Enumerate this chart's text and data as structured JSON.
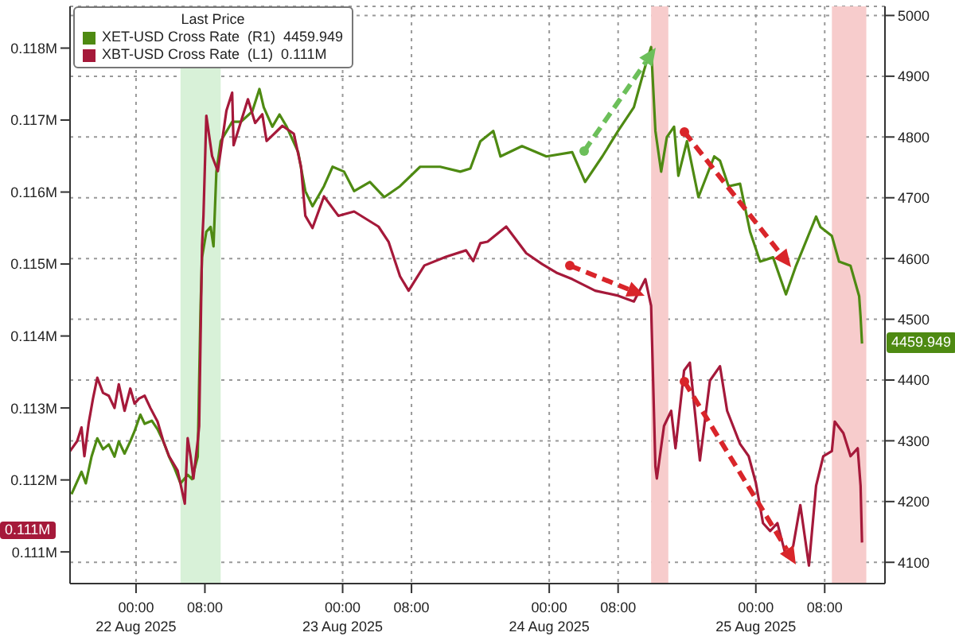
{
  "chart_data": {
    "type": "line",
    "legend_title": "Last Price",
    "legend": "top left",
    "grid": true,
    "xlim": [
      "2025-08-21T16:20",
      "2025-08-25T15:00"
    ],
    "xticks": [
      {
        "value": "2025-08-22T00:00",
        "label": "00:00\n22 Aug 2025"
      },
      {
        "value": "2025-08-22T08:00",
        "label": "08:00"
      },
      {
        "value": "2025-08-23T00:00",
        "label": "00:00\n23 Aug 2025"
      },
      {
        "value": "2025-08-23T08:00",
        "label": "08:00"
      },
      {
        "value": "2025-08-24T00:00",
        "label": "00:00\n24 Aug 2025"
      },
      {
        "value": "2025-08-24T08:00",
        "label": "08:00"
      },
      {
        "value": "2025-08-25T00:00",
        "label": "00:00\n25 Aug 2025"
      },
      {
        "value": "2025-08-25T08:00",
        "label": "08:00"
      }
    ],
    "ylim": [
      110560,
      118580
    ],
    "yticks": [
      {
        "value": 111000,
        "label": "0.111M"
      },
      {
        "value": 112000,
        "label": "0.112M"
      },
      {
        "value": 113000,
        "label": "0.113M"
      },
      {
        "value": 114000,
        "label": "0.114M"
      },
      {
        "value": 115000,
        "label": "0.115M"
      },
      {
        "value": 116000,
        "label": "0.116M"
      },
      {
        "value": 117000,
        "label": "0.117M"
      },
      {
        "value": 118000,
        "label": "0.118M"
      }
    ],
    "y2lim": [
      4065,
      5015
    ],
    "y2ticks": [
      4100,
      4200,
      4300,
      4400,
      4500,
      4600,
      4700,
      4800,
      4900,
      5000
    ],
    "bands": [
      {
        "axis": "x",
        "from": "2025-08-22T05:10",
        "to": "2025-08-22T09:50",
        "color": "#d8f1d8"
      },
      {
        "axis": "x",
        "from": "2025-08-24T11:50",
        "to": "2025-08-24T13:50",
        "color": "#f7cccc"
      },
      {
        "axis": "x",
        "from": "2025-08-25T08:50",
        "to": "2025-08-25T12:50",
        "color": "#f7cccc"
      }
    ],
    "annotations": [
      "4459.949",
      "0.111M"
    ],
    "series": [
      {
        "name": "XET-USD Cross Rate  (R1)  4459.949",
        "color": "#4e8a12",
        "axis": "y2",
        "x": [
          "2025-08-21T16:30",
          "2025-08-21T17:40",
          "2025-08-21T18:10",
          "2025-08-21T18:50",
          "2025-08-21T19:30",
          "2025-08-21T20:10",
          "2025-08-21T20:50",
          "2025-08-21T21:30",
          "2025-08-21T22:00",
          "2025-08-21T22:40",
          "2025-08-21T23:20",
          "2025-08-21T23:50",
          "2025-08-22T00:30",
          "2025-08-22T01:00",
          "2025-08-22T01:50",
          "2025-08-22T02:30",
          "2025-08-22T03:10",
          "2025-08-22T03:50",
          "2025-08-22T04:30",
          "2025-08-22T05:10",
          "2025-08-22T06:00",
          "2025-08-22T06:30",
          "2025-08-22T07:10",
          "2025-08-22T07:30",
          "2025-08-22T07:40",
          "2025-08-22T08:10",
          "2025-08-22T08:40",
          "2025-08-22T09:00",
          "2025-08-22T09:20",
          "2025-08-22T09:50",
          "2025-08-22T11:10",
          "2025-08-22T12:10",
          "2025-08-22T13:30",
          "2025-08-22T14:20",
          "2025-08-22T14:50",
          "2025-08-22T15:50",
          "2025-08-22T16:40",
          "2025-08-22T17:30",
          "2025-08-22T18:50",
          "2025-08-22T19:40",
          "2025-08-22T20:30",
          "2025-08-22T21:50",
          "2025-08-22T22:50",
          "2025-08-23T00:10",
          "2025-08-23T01:20",
          "2025-08-23T03:10",
          "2025-08-23T04:50",
          "2025-08-23T06:40",
          "2025-08-23T09:00",
          "2025-08-23T11:20",
          "2025-08-23T13:40",
          "2025-08-23T14:50",
          "2025-08-23T16:00",
          "2025-08-23T17:30",
          "2025-08-23T18:20",
          "2025-08-23T20:50",
          "2025-08-23T23:40",
          "2025-08-24T02:40",
          "2025-08-24T04:10",
          "2025-08-24T06:10",
          "2025-08-24T08:00",
          "2025-08-24T09:50",
          "2025-08-24T11:00",
          "2025-08-24T11:50",
          "2025-08-24T12:20",
          "2025-08-24T13:00",
          "2025-08-24T13:40",
          "2025-08-24T14:30",
          "2025-08-24T15:00",
          "2025-08-24T16:00",
          "2025-08-24T17:20",
          "2025-08-24T19:10",
          "2025-08-24T19:50",
          "2025-08-24T20:50",
          "2025-08-24T22:10",
          "2025-08-24T23:20",
          "2025-08-25T00:30",
          "2025-08-25T02:00",
          "2025-08-25T03:30",
          "2025-08-25T04:40",
          "2025-08-25T07:00",
          "2025-08-25T07:30",
          "2025-08-25T08:50",
          "2025-08-25T09:40",
          "2025-08-25T11:00",
          "2025-08-25T12:00",
          "2025-08-25T12:10",
          "2025-08-25T12:20"
        ],
        "values": [
          4212,
          4249,
          4230,
          4274,
          4304,
          4286,
          4294,
          4274,
          4299,
          4279,
          4299,
          4316,
          4343,
          4328,
          4333,
          4319,
          4299,
          4274,
          4254,
          4230,
          4244,
          4237,
          4274,
          4521,
          4602,
          4644,
          4652,
          4620,
          4743,
          4793,
          4825,
          4825,
          4842,
          4879,
          4849,
          4817,
          4837,
          4817,
          4775,
          4711,
          4686,
          4719,
          4751,
          4743,
          4711,
          4726,
          4701,
          4719,
          4751,
          4751,
          4743,
          4748,
          4793,
          4810,
          4768,
          4785,
          4768,
          4775,
          4726,
          4768,
          4810,
          4849,
          4909,
          4948,
          4810,
          4743,
          4800,
          4817,
          4736,
          4793,
          4701,
          4768,
          4761,
          4719,
          4723,
          4644,
          4595,
          4602,
          4541,
          4588,
          4669,
          4652,
          4637,
          4595,
          4588,
          4538,
          4504,
          4460
        ]
      },
      {
        "name": "XBT-USD Cross Rate  (L1)  0.111M",
        "color": "#a5193a",
        "x": [
          "2025-08-21T16:20",
          "2025-08-21T17:10",
          "2025-08-21T17:40",
          "2025-08-21T18:00",
          "2025-08-21T18:30",
          "2025-08-21T19:00",
          "2025-08-21T19:30",
          "2025-08-21T20:10",
          "2025-08-21T20:50",
          "2025-08-21T21:30",
          "2025-08-21T22:00",
          "2025-08-21T22:40",
          "2025-08-21T23:20",
          "2025-08-21T23:50",
          "2025-08-22T00:20",
          "2025-08-22T01:00",
          "2025-08-22T01:40",
          "2025-08-22T02:30",
          "2025-08-22T03:10",
          "2025-08-22T03:50",
          "2025-08-22T04:50",
          "2025-08-22T05:40",
          "2025-08-22T06:00",
          "2025-08-22T06:20",
          "2025-08-22T06:40",
          "2025-08-22T07:10",
          "2025-08-22T07:20",
          "2025-08-22T07:40",
          "2025-08-22T07:50",
          "2025-08-22T08:10",
          "2025-08-22T08:50",
          "2025-08-22T09:30",
          "2025-08-22T10:30",
          "2025-08-22T11:10",
          "2025-08-22T11:20",
          "2025-08-22T13:00",
          "2025-08-22T13:50",
          "2025-08-22T14:40",
          "2025-08-22T15:10",
          "2025-08-22T17:00",
          "2025-08-22T18:20",
          "2025-08-22T19:10",
          "2025-08-22T19:40",
          "2025-08-22T20:30",
          "2025-08-22T21:50",
          "2025-08-22T23:30",
          "2025-08-23T01:20",
          "2025-08-23T04:10",
          "2025-08-23T05:20",
          "2025-08-23T06:40",
          "2025-08-23T07:40",
          "2025-08-23T09:30",
          "2025-08-23T12:00",
          "2025-08-23T14:20",
          "2025-08-23T15:10",
          "2025-08-23T16:00",
          "2025-08-23T16:50",
          "2025-08-23T19:00",
          "2025-08-23T21:20",
          "2025-08-23T23:10",
          "2025-08-24T00:50",
          "2025-08-24T02:40",
          "2025-08-24T05:20",
          "2025-08-24T08:00",
          "2025-08-24T09:50",
          "2025-08-24T11:10",
          "2025-08-24T11:50",
          "2025-08-24T12:20",
          "2025-08-24T12:30",
          "2025-08-24T13:20",
          "2025-08-24T14:10",
          "2025-08-24T14:40",
          "2025-08-24T15:40",
          "2025-08-24T16:20",
          "2025-08-24T17:30",
          "2025-08-24T18:40",
          "2025-08-24T19:50",
          "2025-08-24T20:40",
          "2025-08-24T22:10",
          "2025-08-24T23:10",
          "2025-08-25T00:00",
          "2025-08-25T00:50",
          "2025-08-25T01:40",
          "2025-08-25T02:30",
          "2025-08-25T03:30",
          "2025-08-25T04:20",
          "2025-08-25T05:10",
          "2025-08-25T06:10",
          "2025-08-25T07:00",
          "2025-08-25T07:50",
          "2025-08-25T08:50",
          "2025-08-25T09:10",
          "2025-08-25T10:10",
          "2025-08-25T11:00",
          "2025-08-25T11:50",
          "2025-08-25T12:10",
          "2025-08-25T12:20"
        ],
        "values": [
          112400,
          112540,
          112730,
          112330,
          112790,
          113130,
          113420,
          113210,
          113170,
          113000,
          113330,
          112960,
          113270,
          113060,
          113130,
          113170,
          113000,
          112810,
          112540,
          112330,
          112130,
          111670,
          112580,
          112330,
          112020,
          112540,
          112750,
          115250,
          115670,
          117060,
          116500,
          116290,
          117130,
          117380,
          116650,
          117290,
          116960,
          117080,
          116710,
          116920,
          116810,
          116350,
          115670,
          115500,
          115940,
          115670,
          115730,
          115520,
          115310,
          114830,
          114630,
          114980,
          115100,
          115190,
          115040,
          115290,
          115310,
          115520,
          115150,
          115000,
          114880,
          114790,
          114630,
          114560,
          114480,
          114790,
          114420,
          112190,
          112020,
          112750,
          112960,
          112440,
          113520,
          113630,
          112270,
          113380,
          113580,
          112960,
          112500,
          112330,
          111960,
          111400,
          111290,
          111400,
          110940,
          111080,
          111650,
          110810,
          111920,
          112330,
          112400,
          112810,
          112650,
          112330,
          112440,
          111920,
          111130
        ]
      }
    ]
  }
}
